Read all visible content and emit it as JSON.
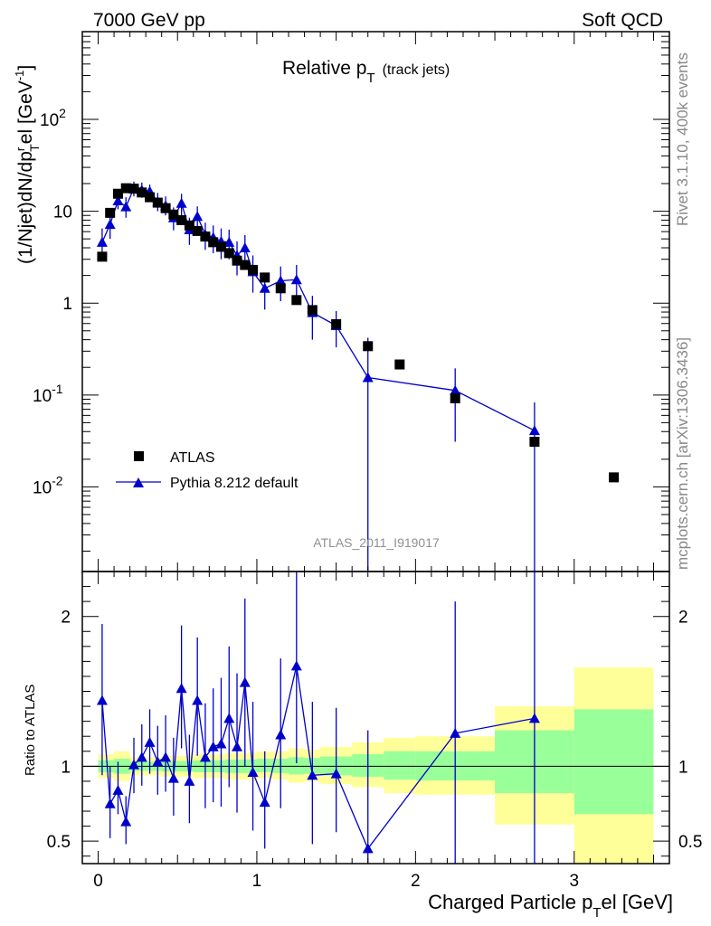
{
  "header": {
    "energy": "7000 GeV pp",
    "process": "Soft QCD",
    "analysis": "ATLAS_2011_I919017",
    "rivet": "Rivet 3.1.10,  400k events",
    "mcplots": "mcplots.cern.ch [arXiv:1306.3436]"
  },
  "chart_data": {
    "type": "scatter",
    "title_main": "Relative p",
    "title_sub": "T",
    "title_paren": "(track jets)",
    "xlabel": "Charged Particle p",
    "xlabel_sub": "T",
    "xlabel_tail": "el [GeV]",
    "ylabel": "(1/Njet)dN/dp",
    "ylabel_sub": "T",
    "ylabel_sup": "r",
    "ylabel_tail": "el [GeV",
    "ylabel_exp": "-1",
    "ylabel_close": "]",
    "ratio_ylabel": "Ratio to ATLAS",
    "xlim": [
      -0.1,
      3.6
    ],
    "ylim_log": [
      0.0012,
      900
    ],
    "ratio_ylim": [
      0.35,
      2.3
    ],
    "x_ticks": [
      "0",
      "1",
      "2",
      "3"
    ],
    "x_tick_values": [
      0,
      1,
      2,
      3
    ],
    "y_ticks": [
      {
        "value": 100,
        "base": "10",
        "exp": "2"
      },
      {
        "value": 10,
        "base": "10",
        "exp": ""
      },
      {
        "value": 1,
        "base": "1",
        "exp": ""
      },
      {
        "value": 0.1,
        "base": "10",
        "exp": "-1"
      },
      {
        "value": 0.01,
        "base": "10",
        "exp": "-2"
      }
    ],
    "ratio_ticks": [
      "0.5",
      "1",
      "2"
    ],
    "ratio_tick_values": [
      0.5,
      1,
      2
    ],
    "legend": {
      "position": "bottom-left",
      "data_label": "ATLAS",
      "mc_label": "Pythia 8.212 default"
    },
    "data_points": [
      {
        "x": 0.025,
        "y": 3.2
      },
      {
        "x": 0.075,
        "y": 9.6
      },
      {
        "x": 0.125,
        "y": 15.5
      },
      {
        "x": 0.175,
        "y": 17.8
      },
      {
        "x": 0.225,
        "y": 17.6
      },
      {
        "x": 0.275,
        "y": 16.0
      },
      {
        "x": 0.325,
        "y": 14.2
      },
      {
        "x": 0.375,
        "y": 12.4
      },
      {
        "x": 0.425,
        "y": 10.8
      },
      {
        "x": 0.475,
        "y": 9.2
      },
      {
        "x": 0.525,
        "y": 8.0
      },
      {
        "x": 0.575,
        "y": 7.0
      },
      {
        "x": 0.625,
        "y": 6.1
      },
      {
        "x": 0.675,
        "y": 5.3
      },
      {
        "x": 0.725,
        "y": 4.6
      },
      {
        "x": 0.775,
        "y": 4.1
      },
      {
        "x": 0.825,
        "y": 3.5
      },
      {
        "x": 0.875,
        "y": 2.9
      },
      {
        "x": 0.925,
        "y": 2.6
      },
      {
        "x": 0.975,
        "y": 2.3
      },
      {
        "x": 1.05,
        "y": 1.9
      },
      {
        "x": 1.15,
        "y": 1.45
      },
      {
        "x": 1.25,
        "y": 1.08
      },
      {
        "x": 1.35,
        "y": 0.84
      },
      {
        "x": 1.5,
        "y": 0.59
      },
      {
        "x": 1.7,
        "y": 0.34
      },
      {
        "x": 1.9,
        "y": 0.215
      },
      {
        "x": 2.25,
        "y": 0.092
      },
      {
        "x": 2.75,
        "y": 0.031
      },
      {
        "x": 3.25,
        "y": 0.0127
      }
    ],
    "mc_points": [
      {
        "x": 0.025,
        "y": 4.6,
        "lo": 3.0,
        "hi": 6.5
      },
      {
        "x": 0.075,
        "y": 7.2,
        "lo": 5.0,
        "hi": 9.6
      },
      {
        "x": 0.125,
        "y": 13.0,
        "lo": 10.5,
        "hi": 16.0
      },
      {
        "x": 0.175,
        "y": 11.2,
        "lo": 8.5,
        "hi": 14.2
      },
      {
        "x": 0.225,
        "y": 17.8,
        "lo": 14.5,
        "hi": 21.0
      },
      {
        "x": 0.275,
        "y": 17.0,
        "lo": 14.0,
        "hi": 20.5
      },
      {
        "x": 0.325,
        "y": 16.5,
        "lo": 13.5,
        "hi": 19.5
      },
      {
        "x": 0.375,
        "y": 12.8,
        "lo": 10.0,
        "hi": 15.8
      },
      {
        "x": 0.425,
        "y": 11.5,
        "lo": 9.0,
        "hi": 14.5
      },
      {
        "x": 0.475,
        "y": 8.5,
        "lo": 6.2,
        "hi": 11.0
      },
      {
        "x": 0.525,
        "y": 12.2,
        "lo": 9.0,
        "hi": 15.5
      },
      {
        "x": 0.575,
        "y": 6.3,
        "lo": 4.3,
        "hi": 8.5
      },
      {
        "x": 0.625,
        "y": 8.8,
        "lo": 6.5,
        "hi": 11.3
      },
      {
        "x": 0.675,
        "y": 5.6,
        "lo": 3.8,
        "hi": 7.5
      },
      {
        "x": 0.725,
        "y": 5.2,
        "lo": 3.5,
        "hi": 7.0
      },
      {
        "x": 0.775,
        "y": 4.7,
        "lo": 3.0,
        "hi": 6.5
      },
      {
        "x": 0.825,
        "y": 4.6,
        "lo": 3.0,
        "hi": 6.3
      },
      {
        "x": 0.875,
        "y": 3.3,
        "lo": 2.0,
        "hi": 4.7
      },
      {
        "x": 0.925,
        "y": 4.0,
        "lo": 2.6,
        "hi": 5.5
      },
      {
        "x": 0.975,
        "y": 2.2,
        "lo": 1.3,
        "hi": 3.3
      },
      {
        "x": 1.05,
        "y": 1.45,
        "lo": 0.85,
        "hi": 2.1
      },
      {
        "x": 1.15,
        "y": 1.75,
        "lo": 1.05,
        "hi": 2.5
      },
      {
        "x": 1.25,
        "y": 1.8,
        "lo": 1.1,
        "hi": 2.6
      },
      {
        "x": 1.35,
        "y": 0.79,
        "lo": 0.4,
        "hi": 1.2
      },
      {
        "x": 1.5,
        "y": 0.57,
        "lo": 0.33,
        "hi": 0.82
      },
      {
        "x": 1.7,
        "y": 0.155,
        "lo": 0.0005,
        "hi": 0.42
      },
      {
        "x": 2.25,
        "y": 0.112,
        "lo": 0.031,
        "hi": 0.195
      },
      {
        "x": 2.75,
        "y": 0.041,
        "lo": 0.0005,
        "hi": 0.083
      }
    ],
    "mc_ratio": [
      {
        "x": 0.025,
        "r": 1.44,
        "lo": 0.94,
        "hi": 1.95
      },
      {
        "x": 0.075,
        "r": 0.75,
        "lo": 0.52,
        "hi": 1.0
      },
      {
        "x": 0.125,
        "r": 0.84,
        "lo": 0.68,
        "hi": 1.03
      },
      {
        "x": 0.175,
        "r": 0.63,
        "lo": 0.48,
        "hi": 0.8
      },
      {
        "x": 0.225,
        "r": 1.01,
        "lo": 0.82,
        "hi": 1.19
      },
      {
        "x": 0.275,
        "r": 1.06,
        "lo": 0.87,
        "hi": 1.28
      },
      {
        "x": 0.325,
        "r": 1.16,
        "lo": 0.95,
        "hi": 1.38
      },
      {
        "x": 0.375,
        "r": 1.03,
        "lo": 0.81,
        "hi": 1.27
      },
      {
        "x": 0.425,
        "r": 1.06,
        "lo": 0.83,
        "hi": 1.34
      },
      {
        "x": 0.475,
        "r": 0.92,
        "lo": 0.67,
        "hi": 1.19
      },
      {
        "x": 0.525,
        "r": 1.52,
        "lo": 1.12,
        "hi": 1.94
      },
      {
        "x": 0.575,
        "r": 0.9,
        "lo": 0.62,
        "hi": 1.21
      },
      {
        "x": 0.625,
        "r": 1.44,
        "lo": 1.07,
        "hi": 1.86
      },
      {
        "x": 0.675,
        "r": 1.06,
        "lo": 0.72,
        "hi": 1.42
      },
      {
        "x": 0.725,
        "r": 1.13,
        "lo": 0.76,
        "hi": 1.52
      },
      {
        "x": 0.775,
        "r": 1.15,
        "lo": 0.73,
        "hi": 1.59
      },
      {
        "x": 0.825,
        "r": 1.32,
        "lo": 0.86,
        "hi": 1.8
      },
      {
        "x": 0.875,
        "r": 1.13,
        "lo": 0.69,
        "hi": 1.62
      },
      {
        "x": 0.925,
        "r": 1.56,
        "lo": 1.0,
        "hi": 2.12
      },
      {
        "x": 0.975,
        "r": 0.96,
        "lo": 0.57,
        "hi": 1.43
      },
      {
        "x": 1.05,
        "r": 0.76,
        "lo": 0.45,
        "hi": 1.1
      },
      {
        "x": 1.15,
        "r": 1.21,
        "lo": 0.72,
        "hi": 1.72
      },
      {
        "x": 1.25,
        "r": 1.67,
        "lo": 1.02,
        "hi": 2.4
      },
      {
        "x": 1.35,
        "r": 0.94,
        "lo": 0.48,
        "hi": 1.43
      },
      {
        "x": 1.5,
        "r": 0.95,
        "lo": 0.56,
        "hi": 1.39
      },
      {
        "x": 1.7,
        "r": 0.45,
        "lo": 0.001,
        "hi": 1.24
      },
      {
        "x": 2.25,
        "r": 1.22,
        "lo": 0.34,
        "hi": 2.1
      },
      {
        "x": 2.75,
        "r": 1.32,
        "lo": 0.001,
        "hi": 2.68
      }
    ],
    "bands": [
      {
        "x0": 0.0,
        "x1": 0.1,
        "y_lo": 0.92,
        "y_hi": 1.08,
        "g_lo": 0.96,
        "g_hi": 1.04
      },
      {
        "x0": 0.1,
        "x1": 0.2,
        "y_lo": 0.9,
        "y_hi": 1.1,
        "g_lo": 0.95,
        "g_hi": 1.05
      },
      {
        "x0": 0.2,
        "x1": 0.4,
        "y_lo": 0.94,
        "y_hi": 1.06,
        "g_lo": 0.97,
        "g_hi": 1.03
      },
      {
        "x0": 0.4,
        "x1": 0.6,
        "y_lo": 0.93,
        "y_hi": 1.07,
        "g_lo": 0.965,
        "g_hi": 1.035
      },
      {
        "x0": 0.6,
        "x1": 0.8,
        "y_lo": 0.92,
        "y_hi": 1.08,
        "g_lo": 0.96,
        "g_hi": 1.04
      },
      {
        "x0": 0.8,
        "x1": 1.0,
        "y_lo": 0.91,
        "y_hi": 1.09,
        "g_lo": 0.955,
        "g_hi": 1.045
      },
      {
        "x0": 1.0,
        "x1": 1.1,
        "y_lo": 0.92,
        "y_hi": 1.1,
        "g_lo": 0.96,
        "g_hi": 1.05
      },
      {
        "x0": 1.1,
        "x1": 1.2,
        "y_lo": 0.91,
        "y_hi": 1.1,
        "g_lo": 0.955,
        "g_hi": 1.05
      },
      {
        "x0": 1.2,
        "x1": 1.3,
        "y_lo": 0.89,
        "y_hi": 1.12,
        "g_lo": 0.945,
        "g_hi": 1.06
      },
      {
        "x0": 1.3,
        "x1": 1.4,
        "y_lo": 0.9,
        "y_hi": 1.11,
        "g_lo": 0.95,
        "g_hi": 1.055
      },
      {
        "x0": 1.4,
        "x1": 1.6,
        "y_lo": 0.88,
        "y_hi": 1.13,
        "g_lo": 0.94,
        "g_hi": 1.065
      },
      {
        "x0": 1.6,
        "x1": 1.8,
        "y_lo": 0.86,
        "y_hi": 1.16,
        "g_lo": 0.93,
        "g_hi": 1.08
      },
      {
        "x0": 1.8,
        "x1": 2.0,
        "y_lo": 0.82,
        "y_hi": 1.19,
        "g_lo": 0.91,
        "g_hi": 1.1
      },
      {
        "x0": 2.0,
        "x1": 2.5,
        "y_lo": 0.81,
        "y_hi": 1.2,
        "g_lo": 0.905,
        "g_hi": 1.1
      },
      {
        "x0": 2.5,
        "x1": 3.0,
        "y_lo": 0.61,
        "y_hi": 1.4,
        "g_lo": 0.82,
        "g_hi": 1.24
      },
      {
        "x0": 3.0,
        "x1": 3.5,
        "y_lo": 0.35,
        "y_hi": 1.66,
        "g_lo": 0.68,
        "g_hi": 1.38
      }
    ],
    "colors": {
      "mc": "#0000cc",
      "data": "#000000",
      "band_yellow": "#ffff99",
      "band_green": "#99ff99",
      "analysis_label": "#909090",
      "side_text": "#888888"
    }
  }
}
